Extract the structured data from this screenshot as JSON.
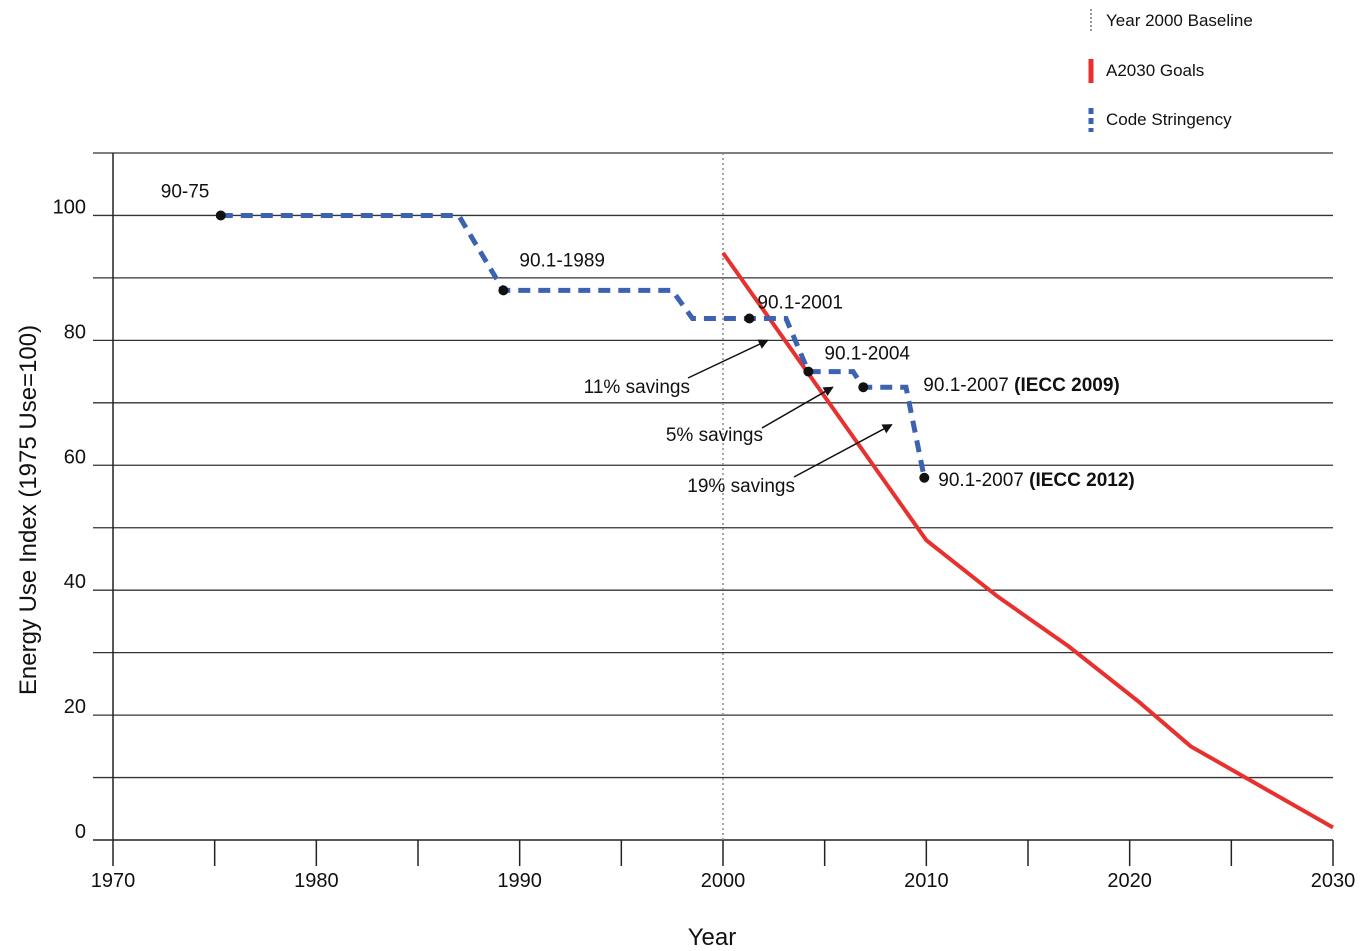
{
  "chart_data": {
    "type": "line",
    "xlabel": "Year",
    "ylabel": "Energy Use Index (1975 Use=100)",
    "xlim": [
      1970,
      2030
    ],
    "ylim": [
      0,
      110
    ],
    "x_ticks": [
      "1970",
      "1980",
      "1990",
      "2000",
      "2010",
      "2020",
      "2030"
    ],
    "y_ticks": [
      "0",
      "20",
      "40",
      "60",
      "80",
      "100"
    ],
    "grid": "horizontal",
    "legend": {
      "placement": "top-right",
      "entries": [
        {
          "label": "Year 2000  Baseline",
          "style": "dotted",
          "color": "#777777"
        },
        {
          "label": "A2030 Goals",
          "style": "solid",
          "color": "#e8312f"
        },
        {
          "label": "Code Stringency",
          "style": "dashed",
          "color": "#3d63b0"
        }
      ]
    },
    "baseline_year": 2000,
    "series": [
      {
        "name": "A2030 Goals",
        "color": "#e8312f",
        "x": [
          2000,
          2010,
          2013.5,
          2017,
          2020.5,
          2023,
          2026.5,
          2030
        ],
        "y": [
          94,
          48,
          39,
          31,
          22,
          15,
          8.5,
          2
        ]
      },
      {
        "name": "Code Stringency",
        "color": "#3d63b0",
        "x": [
          1975.3,
          1987,
          1989.2,
          1997.5,
          1998.5,
          2001.3,
          2003.1,
          2004.2,
          2006.4,
          2006.9,
          2009,
          2009.9
        ],
        "y": [
          100,
          100,
          88,
          88,
          83.5,
          83.5,
          83.5,
          75,
          75,
          72.5,
          72.5,
          58
        ]
      }
    ],
    "points": [
      {
        "x": 1975.3,
        "y": 100,
        "label": "90-75",
        "bold": ""
      },
      {
        "x": 1989.2,
        "y": 88,
        "label": "90.1-1989",
        "bold": ""
      },
      {
        "x": 2001.3,
        "y": 83.5,
        "label": "90.1-2001",
        "bold": ""
      },
      {
        "x": 2004.2,
        "y": 75,
        "label": "90.1-2004",
        "bold": ""
      },
      {
        "x": 2006.9,
        "y": 72.5,
        "label": "90.1-2007 ",
        "bold": "(IECC 2009)"
      },
      {
        "x": 2009.9,
        "y": 58,
        "label": "90.1-2007 ",
        "bold": "(IECC 2012)"
      }
    ],
    "annotations": [
      {
        "text": "11% savings"
      },
      {
        "text": "5% savings"
      },
      {
        "text": "19% savings"
      }
    ]
  }
}
